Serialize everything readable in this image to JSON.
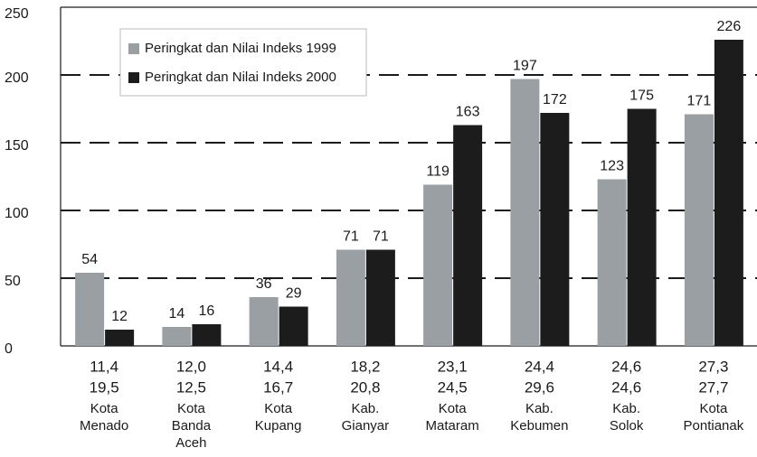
{
  "chart_data": {
    "type": "bar",
    "categories": [
      [
        "Kota",
        "Menado"
      ],
      [
        "Kota",
        "Banda",
        "Aceh"
      ],
      [
        "Kota",
        "Kupang"
      ],
      [
        "Kab.",
        "Gianyar"
      ],
      [
        "Kota",
        "Mataram"
      ],
      [
        "Kab.",
        "Kebumen"
      ],
      [
        "Kab.",
        "Solok"
      ],
      [
        "Kota",
        "Pontianak"
      ]
    ],
    "category_rows": [
      [
        "11,4",
        "12,0",
        "14,4",
        "18,2",
        "23,1",
        "24,4",
        "24,6",
        "27,3"
      ],
      [
        "19,5",
        "12,5",
        "16,7",
        "20,8",
        "24,5",
        "29,6",
        "24,6",
        "27,7"
      ]
    ],
    "series": [
      {
        "name": "Peringkat dan Nilai Indeks 1999",
        "color": "#9a9fa4",
        "values": [
          54,
          14,
          36,
          71,
          119,
          197,
          123,
          171
        ]
      },
      {
        "name": "Peringkat dan Nilai Indeks 2000",
        "color": "#1c1c1c",
        "values": [
          12,
          16,
          29,
          71,
          163,
          172,
          175,
          226
        ]
      }
    ],
    "ylim": [
      0,
      250
    ],
    "yticks": [
      0,
      50,
      100,
      150,
      200,
      250
    ],
    "grid": true,
    "legend": "upper left"
  }
}
